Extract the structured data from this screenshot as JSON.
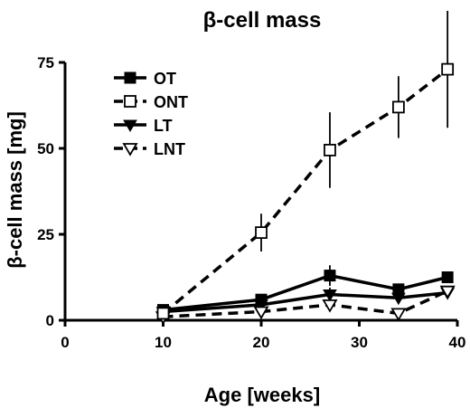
{
  "chart_data": {
    "type": "line",
    "title": "β-cell mass",
    "xlabel": "Age [weeks]",
    "ylabel": "β-cell mass [mg]",
    "xlim": [
      0,
      40
    ],
    "ylim": [
      0,
      75
    ],
    "xticks": [
      0,
      10,
      20,
      30,
      40
    ],
    "yticks": [
      0,
      25,
      50,
      75
    ],
    "grid": false,
    "legend_position": "top-left",
    "series": [
      {
        "name": "OT",
        "line": "solid",
        "marker": "filled-square",
        "x": [
          10,
          20,
          27,
          34,
          39
        ],
        "y": [
          3,
          6,
          13,
          9,
          12.5
        ],
        "err": [
          0.5,
          1.5,
          3,
          1.5,
          1.5
        ]
      },
      {
        "name": "ONT",
        "line": "dashed",
        "marker": "open-square",
        "x": [
          10,
          20,
          27,
          34,
          39
        ],
        "y": [
          2,
          25.5,
          49.5,
          62,
          73
        ],
        "err": [
          0.5,
          5.5,
          11,
          9,
          17
        ]
      },
      {
        "name": "LT",
        "line": "solid",
        "marker": "filled-triangle-down",
        "x": [
          10,
          20,
          27,
          34,
          39
        ],
        "y": [
          2.5,
          4.5,
          7.5,
          6.5,
          8
        ],
        "err": [
          0.5,
          1,
          2,
          1,
          1
        ]
      },
      {
        "name": "LNT",
        "line": "dashed",
        "marker": "open-triangle-down",
        "x": [
          10,
          20,
          27,
          34,
          39
        ],
        "y": [
          1,
          2.5,
          4.5,
          2,
          8.5
        ],
        "err": [
          0.5,
          0.5,
          1,
          0.5,
          1
        ]
      }
    ]
  }
}
